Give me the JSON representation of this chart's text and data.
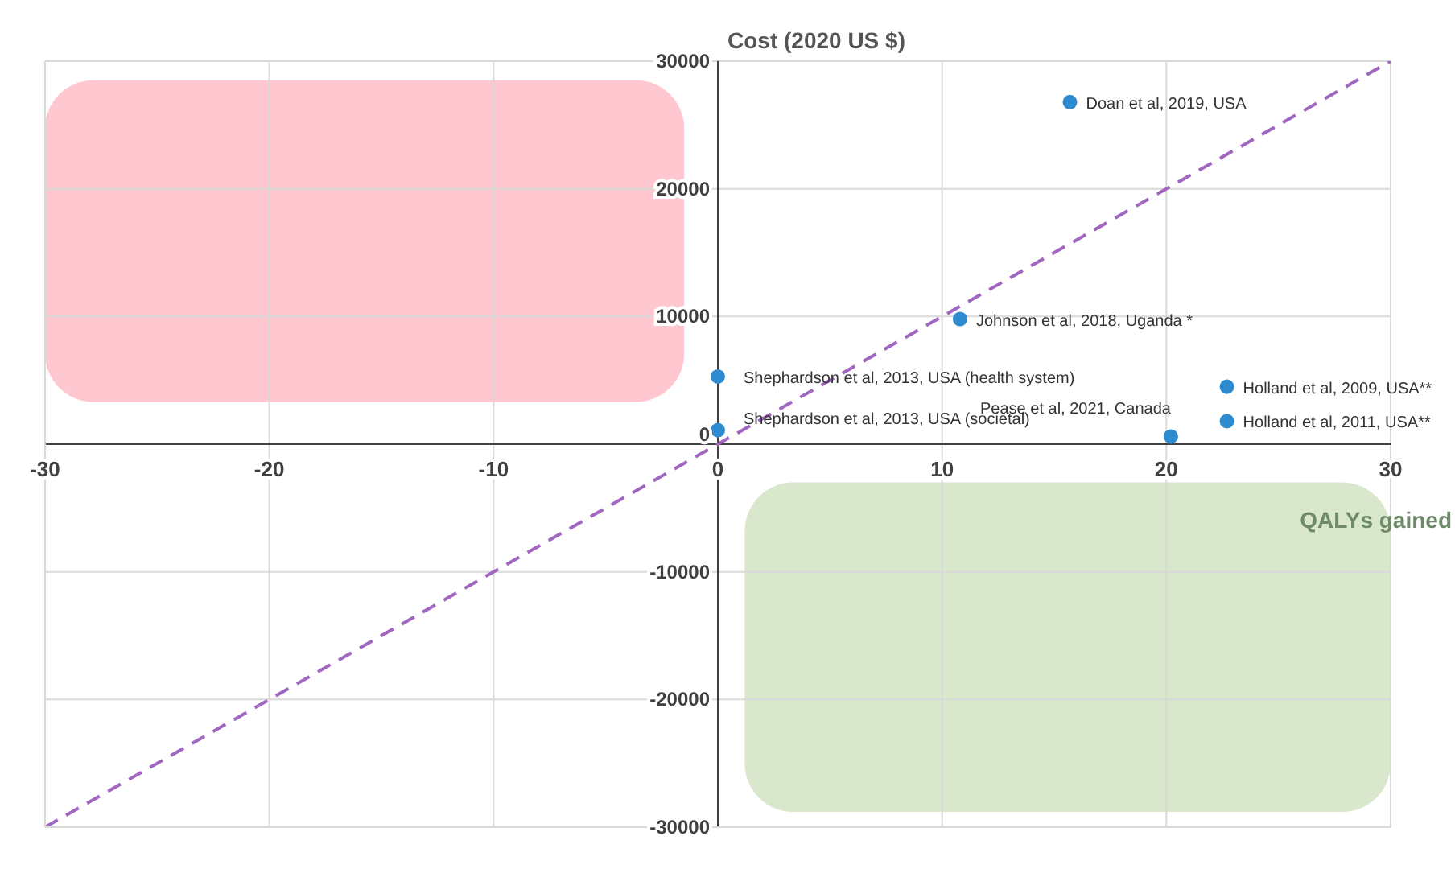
{
  "chart_data": {
    "type": "scatter",
    "xlabel": "QALYs gained",
    "ylabel": "Cost (2020  US $)",
    "xlim": [
      -30,
      30
    ],
    "xticks": [
      -30,
      -20,
      -10,
      0,
      10,
      20,
      30
    ],
    "ylim": [
      -30000,
      30000
    ],
    "yticks": [
      -30000,
      -20000,
      -10000,
      0,
      10000,
      20000,
      30000
    ],
    "grid": true,
    "marker": "circle",
    "series": [
      {
        "color": "#2e8bd0",
        "x": [
          15.7,
          10.8,
          0,
          0,
          20.2,
          22.7,
          22.7
        ],
        "values": [
          26800,
          9800,
          5300,
          1100,
          600,
          4500,
          1800
        ]
      },
      {
        "type": "line",
        "color": "#a066c0",
        "line_style": "dashed",
        "marker": "none",
        "x": [
          -30,
          30
        ],
        "values": [
          -30000,
          30000
        ]
      }
    ],
    "annotations": [
      {
        "text": "Doan et al, 2019, USA",
        "x": 15.7,
        "y": 26800
      },
      {
        "text": "Johnson et al, 2018, Uganda *",
        "x": 10.8,
        "y": 9800
      },
      {
        "text": "Shephardson et al, 2013, USA (health system)",
        "x": 0,
        "y": 5300
      },
      {
        "text": "Shephardson et al, 2013, USA (societal)",
        "x": 0,
        "y": 1100
      },
      {
        "text": "Pease et al, 2021, Canada",
        "x": 20.2,
        "y": 600
      },
      {
        "text": "Holland et al, 2009, USA**",
        "x": 22.7,
        "y": 4500
      },
      {
        "text": "Holland et al, 2011, USA**",
        "x": 22.7,
        "y": 1800
      }
    ]
  }
}
